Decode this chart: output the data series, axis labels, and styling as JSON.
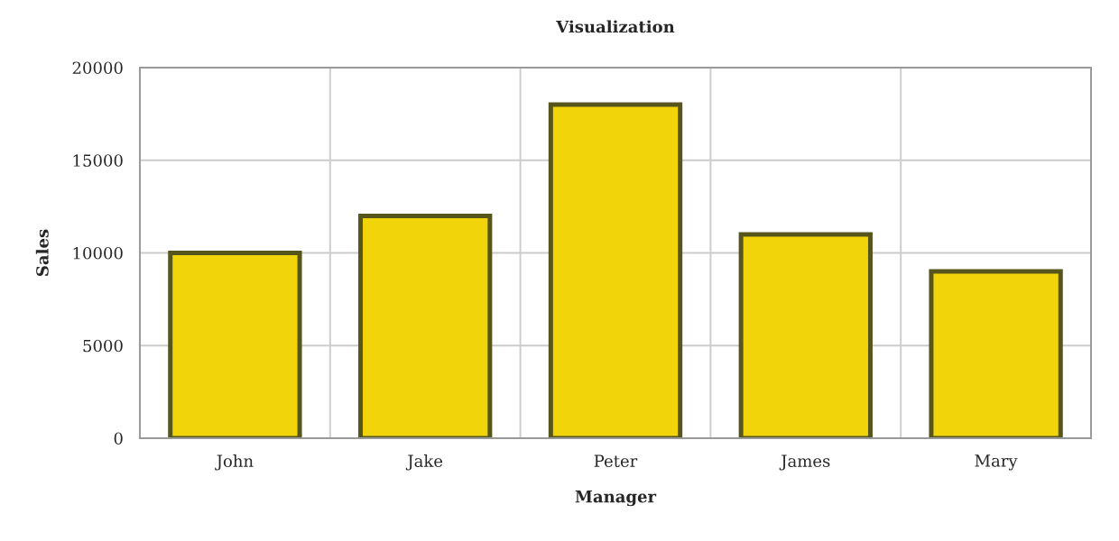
{
  "chart_data": {
    "type": "bar",
    "title": "Visualization",
    "xlabel": "Manager",
    "ylabel": "Sales",
    "categories": [
      "John",
      "Jake",
      "Peter",
      "James",
      "Mary"
    ],
    "values": [
      10000,
      12000,
      18000,
      11000,
      9000
    ],
    "color": "#f2d40a",
    "ylim": [
      0,
      20000
    ],
    "yticks": [
      0,
      5000,
      10000,
      15000,
      20000
    ],
    "grid": true
  }
}
